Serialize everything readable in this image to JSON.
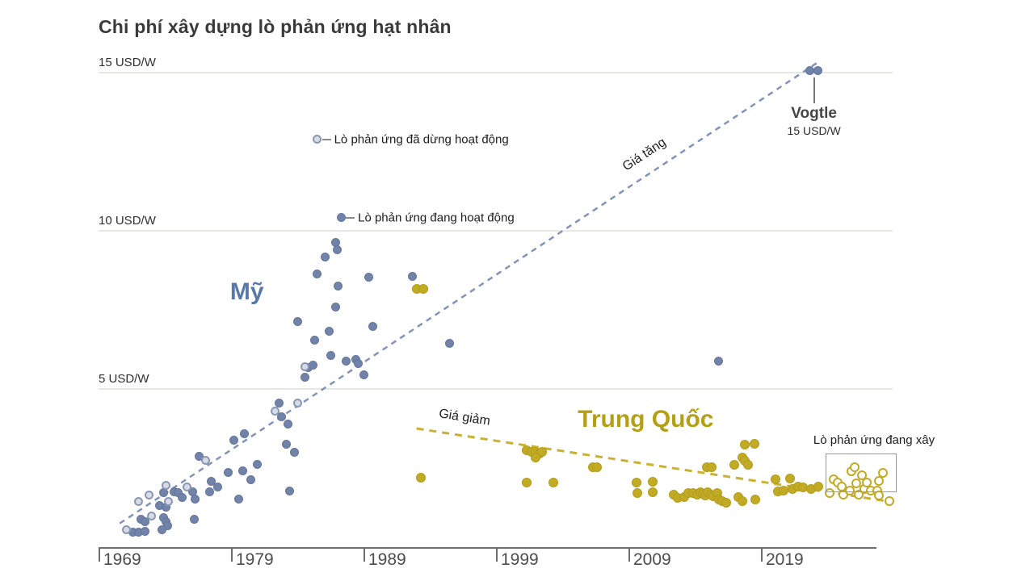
{
  "title": "Chi phí xây dựng lò phản ứng hạt nhân",
  "colors": {
    "us_fill": "#7183a8",
    "us_open_fill": "#d6dbe6",
    "us_trend": "#8194b8",
    "us_label": "#5878ab",
    "cn_fill": "#c2ab24",
    "cn_trend": "#c9b232",
    "cn_label": "#b3a017",
    "grid": "#e7e7e4",
    "axis": "#6e6e6e",
    "text": "#3a3a3a"
  },
  "chart_data": {
    "type": "scatter",
    "title": "Chi phí xây dựng lò phản ứng hạt nhân",
    "xlabel": "",
    "ylabel": "USD/W",
    "xlim": [
      1969,
      2030
    ],
    "ylim": [
      0,
      15
    ],
    "grid": true,
    "x_ticks": [
      1969,
      1979,
      1989,
      1999,
      2009,
      2019
    ],
    "y_ticks": [
      {
        "value": 5,
        "label": "5 USD/W"
      },
      {
        "value": 10,
        "label": "10 USD/W"
      },
      {
        "value": 15,
        "label": "15 USD/W"
      }
    ],
    "series": [
      {
        "name": "Mỹ — lò phản ứng đang hoạt động",
        "key": "us-operating",
        "style": "us-op",
        "points": [
          [
            1971.6,
            0.47
          ],
          [
            1972.0,
            0.47
          ],
          [
            1972.5,
            0.49
          ],
          [
            1972.2,
            0.88
          ],
          [
            1972.5,
            0.8
          ],
          [
            1973.6,
            1.32
          ],
          [
            1974.1,
            1.27
          ],
          [
            1973.9,
            0.93
          ],
          [
            1974.1,
            0.8
          ],
          [
            1974.2,
            0.67
          ],
          [
            1973.8,
            0.54
          ],
          [
            1973.9,
            1.71
          ],
          [
            1974.7,
            1.76
          ],
          [
            1975.0,
            1.71
          ],
          [
            1975.3,
            1.58
          ],
          [
            1976.1,
            1.76
          ],
          [
            1976.3,
            1.52
          ],
          [
            1977.4,
            1.76
          ],
          [
            1976.2,
            0.88
          ],
          [
            1976.6,
            2.87
          ],
          [
            1977.5,
            2.09
          ],
          [
            1978.0,
            1.89
          ],
          [
            1978.8,
            2.35
          ],
          [
            1979.9,
            2.4
          ],
          [
            1980.5,
            2.14
          ],
          [
            1981.0,
            2.61
          ],
          [
            1979.2,
            3.39
          ],
          [
            1980.0,
            3.59
          ],
          [
            1979.6,
            1.52
          ],
          [
            1983.4,
            1.78
          ],
          [
            1982.6,
            4.55
          ],
          [
            1982.8,
            4.11
          ],
          [
            1983.3,
            3.9
          ],
          [
            1983.2,
            3.26
          ],
          [
            1983.8,
            3.0
          ],
          [
            1984.8,
            5.68
          ],
          [
            1985.2,
            5.74
          ],
          [
            1984.6,
            5.37
          ],
          [
            1985.3,
            6.54
          ],
          [
            1986.4,
            6.82
          ],
          [
            1986.5,
            6.05
          ],
          [
            1987.7,
            5.87
          ],
          [
            1988.4,
            5.92
          ],
          [
            1988.6,
            5.81
          ],
          [
            1989.0,
            5.45
          ],
          [
            1986.9,
            7.6
          ],
          [
            1984.0,
            7.13
          ],
          [
            1989.7,
            6.98
          ],
          [
            1989.4,
            8.53
          ],
          [
            1987.1,
            8.24
          ],
          [
            1985.5,
            8.63
          ],
          [
            1986.1,
            9.17
          ],
          [
            1986.9,
            9.64
          ],
          [
            1987.0,
            9.41
          ],
          [
            1987.3,
            10.41
          ],
          [
            1992.7,
            8.55
          ],
          [
            1995.5,
            6.43
          ],
          [
            2015.8,
            5.89
          ],
          [
            2022.7,
            15.06
          ],
          [
            2023.3,
            15.06
          ]
        ]
      },
      {
        "name": "Mỹ — lò phản ứng đã dừng hoạt động",
        "key": "us-shutdown",
        "style": "us-sd",
        "points": [
          [
            1971.1,
            0.54
          ],
          [
            1973.0,
            0.98
          ],
          [
            1972.0,
            1.45
          ],
          [
            1972.8,
            1.65
          ],
          [
            1974.1,
            1.96
          ],
          [
            1975.7,
            1.89
          ],
          [
            1974.3,
            1.45
          ],
          [
            1977.1,
            2.74
          ],
          [
            1982.3,
            4.29
          ],
          [
            1984.0,
            4.55
          ],
          [
            1984.6,
            5.71
          ],
          [
            1985.5,
            12.89
          ]
        ]
      },
      {
        "name": "Trung Quốc — đã xây",
        "key": "cn-built",
        "style": "cn-op",
        "points": [
          [
            1993.0,
            8.16
          ],
          [
            1993.5,
            8.16
          ],
          [
            1993.3,
            2.2
          ],
          [
            2001.3,
            3.05
          ],
          [
            2001.7,
            3.0
          ],
          [
            2002.0,
            3.02
          ],
          [
            2002.3,
            2.97
          ],
          [
            2002.5,
            3.02
          ],
          [
            2002.0,
            2.82
          ],
          [
            2001.3,
            2.04
          ],
          [
            2003.3,
            2.04
          ],
          [
            2006.3,
            2.53
          ],
          [
            2006.6,
            2.53
          ],
          [
            2009.6,
            2.04
          ],
          [
            2009.7,
            1.71
          ],
          [
            2010.8,
            2.07
          ],
          [
            2010.8,
            1.73
          ],
          [
            2012.4,
            1.65
          ],
          [
            2012.7,
            1.55
          ],
          [
            2013.2,
            1.58
          ],
          [
            2013.5,
            1.71
          ],
          [
            2013.9,
            1.71
          ],
          [
            2014.2,
            1.65
          ],
          [
            2014.4,
            1.73
          ],
          [
            2014.6,
            1.68
          ],
          [
            2014.8,
            1.63
          ],
          [
            2015.0,
            1.73
          ],
          [
            2015.2,
            1.65
          ],
          [
            2015.4,
            1.6
          ],
          [
            2015.7,
            1.71
          ],
          [
            2015.8,
            1.5
          ],
          [
            2016.1,
            1.45
          ],
          [
            2016.4,
            1.4
          ],
          [
            2014.9,
            2.53
          ],
          [
            2015.3,
            2.53
          ],
          [
            2017.0,
            2.61
          ],
          [
            2017.6,
            2.82
          ],
          [
            2017.8,
            2.74
          ],
          [
            2018.0,
            2.61
          ],
          [
            2017.8,
            3.23
          ],
          [
            2018.5,
            3.26
          ],
          [
            2017.3,
            1.58
          ],
          [
            2017.6,
            1.45
          ],
          [
            2018.6,
            1.5
          ],
          [
            2020.1,
            2.14
          ],
          [
            2020.3,
            1.76
          ],
          [
            2020.7,
            1.78
          ],
          [
            2021.2,
            2.17
          ],
          [
            2021.4,
            1.83
          ],
          [
            2021.8,
            1.91
          ],
          [
            2022.2,
            1.89
          ],
          [
            2022.8,
            1.83
          ],
          [
            2023.3,
            1.91
          ]
        ]
      },
      {
        "name": "Trung Quốc — lò phản ứng đang xây",
        "key": "cn-under-construction",
        "style": "cn-uc",
        "points": [
          [
            2024.2,
            1.71
          ],
          [
            2024.5,
            2.14
          ],
          [
            2024.8,
            2.04
          ],
          [
            2025.1,
            1.91
          ],
          [
            2025.2,
            1.65
          ],
          [
            2025.7,
            1.78
          ],
          [
            2025.8,
            2.4
          ],
          [
            2026.1,
            2.53
          ],
          [
            2026.2,
            2.02
          ],
          [
            2026.4,
            1.65
          ],
          [
            2026.6,
            2.27
          ],
          [
            2026.8,
            1.83
          ],
          [
            2027.0,
            2.04
          ],
          [
            2027.3,
            1.78
          ],
          [
            2027.8,
            1.78
          ],
          [
            2027.9,
            2.09
          ],
          [
            2027.9,
            1.63
          ],
          [
            2028.2,
            2.35
          ],
          [
            2028.7,
            1.45
          ]
        ]
      }
    ],
    "trend_lines": [
      {
        "key": "us",
        "label": "Giá tăng",
        "color": "#8194b8",
        "width": 2.5,
        "dash": "7,6",
        "from": [
          1970.6,
          0.75
        ],
        "to": [
          2023.2,
          15.3
        ],
        "label_at": [
          2010.2,
          12.4
        ]
      },
      {
        "key": "cn",
        "label": "Giá giảm",
        "color": "#c9b232",
        "width": 3,
        "dash": "9,7",
        "from": [
          1993.0,
          3.75
        ],
        "to": [
          2029.0,
          1.42
        ],
        "label_at": [
          1996.6,
          4.08
        ]
      }
    ],
    "annotations": {
      "us_country_label": {
        "text": "Mỹ",
        "x": 1980.2,
        "y": 8.06,
        "color": "#5878ab"
      },
      "cn_country_label": {
        "text": "Trung Quốc",
        "x": 2010.3,
        "y": 4.03,
        "color": "#b3a017"
      },
      "vogtle": {
        "title": "Vogtle",
        "subtitle": "15 USD/W",
        "x": 2023.0,
        "y": 15.06
      },
      "shutdown_callout": {
        "text": "Lò phản ứng đã dừng hoạt động",
        "x": 1985.5,
        "y": 12.89
      },
      "operating_callout": {
        "text": "Lò phản ứng đang hoạt động",
        "x": 1987.3,
        "y": 10.41
      },
      "construction_box": {
        "text": "Lò phản ứng đang xây",
        "x1": 2023.9,
        "y1": 2.96,
        "x2": 2029.1,
        "y2": 1.79
      }
    }
  }
}
